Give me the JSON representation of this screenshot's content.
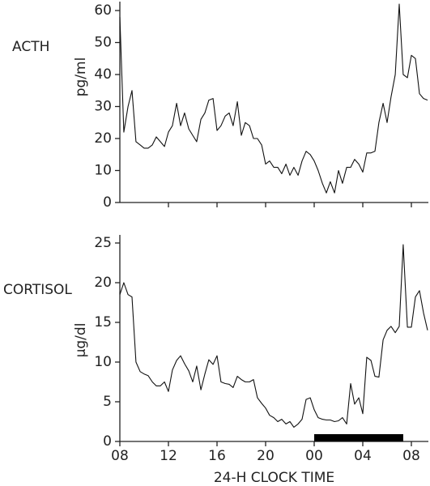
{
  "chart_data": [
    {
      "type": "line",
      "title": "ACTH",
      "ylabel": "pg/ml",
      "x": [
        8,
        8.33,
        8.67,
        9,
        9.33,
        9.67,
        10,
        10.33,
        10.67,
        11,
        11.33,
        11.67,
        12,
        12.33,
        12.67,
        13,
        13.33,
        13.67,
        14,
        14.33,
        14.67,
        15,
        15.33,
        15.67,
        16,
        16.33,
        16.67,
        17,
        17.33,
        17.67,
        18,
        18.33,
        18.67,
        19,
        19.33,
        19.67,
        20,
        20.33,
        20.67,
        21,
        21.33,
        21.67,
        22,
        22.33,
        22.67,
        23,
        23.33,
        23.67,
        24,
        24.33,
        24.67,
        25,
        25.33,
        25.67,
        26,
        26.33,
        26.67,
        27,
        27.33,
        27.67,
        28,
        28.33,
        28.67,
        29,
        29.33,
        29.67,
        30,
        30.33,
        30.67,
        31,
        31.33,
        31.67,
        32,
        32.33,
        32.67,
        33,
        33.33
      ],
      "series": [
        {
          "name": "ACTH",
          "color": "#111111",
          "values": [
            58,
            22,
            30,
            35,
            19,
            18,
            17,
            17,
            18,
            20.5,
            19,
            17.5,
            22,
            24,
            31,
            24,
            28,
            23,
            21,
            19,
            26,
            28,
            32,
            32.5,
            22.5,
            24,
            27,
            28,
            24,
            31.5,
            21,
            25,
            24,
            20,
            20,
            18,
            12,
            13,
            11,
            11,
            9,
            12,
            8.5,
            11,
            8.5,
            13,
            16,
            15,
            13,
            10,
            6,
            3,
            6.5,
            3,
            10,
            6,
            11,
            11,
            13.5,
            12,
            9.5,
            15.5,
            15.5,
            16,
            25,
            31,
            25,
            33,
            40,
            62,
            40,
            39,
            46,
            45,
            34,
            32.5,
            32
          ]
        }
      ],
      "xlim": [
        8,
        33.4
      ],
      "xticks": [
        12,
        16,
        20,
        24,
        28,
        32
      ],
      "ylim": [
        0,
        60
      ],
      "yticks": [
        0,
        10,
        20,
        30,
        40,
        50,
        60
      ]
    },
    {
      "type": "line",
      "title": "CORTISOL",
      "ylabel": "µg/dl",
      "xlabel": "24-H CLOCK TIME",
      "x": [
        8,
        8.33,
        8.67,
        9,
        9.33,
        9.67,
        10,
        10.33,
        10.67,
        11,
        11.33,
        11.67,
        12,
        12.33,
        12.67,
        13,
        13.33,
        13.67,
        14,
        14.33,
        14.67,
        15,
        15.33,
        15.67,
        16,
        16.33,
        16.67,
        17,
        17.33,
        17.67,
        18,
        18.33,
        18.67,
        19,
        19.33,
        19.67,
        20,
        20.33,
        20.67,
        21,
        21.33,
        21.67,
        22,
        22.33,
        22.67,
        23,
        23.33,
        23.67,
        24,
        24.33,
        24.67,
        25,
        25.33,
        25.67,
        26,
        26.33,
        26.67,
        27,
        27.33,
        27.67,
        28,
        28.33,
        28.67,
        29,
        29.33,
        29.67,
        30,
        30.33,
        30.67,
        31,
        31.33,
        31.67,
        32,
        32.33,
        32.67,
        33,
        33.33
      ],
      "series": [
        {
          "name": "CORTISOL",
          "color": "#111111",
          "values": [
            18.5,
            20,
            18.5,
            18.2,
            10,
            8.8,
            8.5,
            8.3,
            7.5,
            7,
            7,
            7.5,
            6.3,
            9,
            10.2,
            10.8,
            9.8,
            8.9,
            7.5,
            9.5,
            6.5,
            8.5,
            10.3,
            9.7,
            10.8,
            7.5,
            7.3,
            7.2,
            6.8,
            8.2,
            7.8,
            7.5,
            7.5,
            7.8,
            5.5,
            4.8,
            4.2,
            3.3,
            3,
            2.5,
            2.8,
            2.2,
            2.5,
            1.8,
            2.2,
            2.8,
            5.3,
            5.5,
            4,
            3,
            2.8,
            2.7,
            2.7,
            2.5,
            2.6,
            3,
            2.2,
            7.3,
            4.7,
            5.5,
            3.5,
            10.6,
            10.2,
            8.2,
            8.1,
            12.8,
            14,
            14.5,
            13.7,
            14.5,
            24.8,
            14.4,
            14.4,
            18.2,
            19,
            16.2,
            14
          ]
        }
      ],
      "bar_range": [
        24,
        31.33
      ],
      "xlim": [
        8,
        33.4
      ],
      "xticks": [
        {
          "value": 8,
          "label": "08"
        },
        12,
        16,
        20,
        {
          "value": 24,
          "label": "00"
        },
        {
          "value": 28,
          "label": "04"
        },
        {
          "value": 32,
          "label": "08"
        }
      ],
      "ylim": [
        0,
        25
      ],
      "yticks": [
        0,
        5,
        10,
        15,
        20,
        25
      ]
    }
  ]
}
